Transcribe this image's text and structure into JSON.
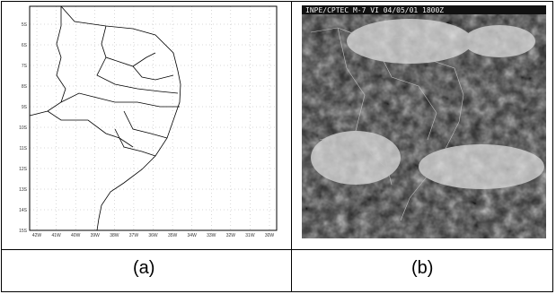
{
  "panel_a": {
    "caption": "(a)",
    "y_ticks": [
      "5S",
      "6S",
      "7S",
      "8S",
      "9S",
      "10S",
      "11S",
      "12S",
      "13S",
      "14S",
      "15S"
    ],
    "x_ticks": [
      "42W",
      "41W",
      "40W",
      "39W",
      "38W",
      "37W",
      "36W",
      "35W",
      "34W",
      "33W",
      "32W",
      "31W",
      "30W"
    ],
    "colors": {
      "frame": "#000000",
      "grid": "#b0b0b0",
      "coast": "#000000"
    }
  },
  "panel_b": {
    "caption": "(b)",
    "banner": "INPE/CPTEC M-7 VI 04/05/01 1800Z",
    "colors": {
      "cloud": "#e8e8e8",
      "land": "#3a3a3a",
      "ocean": "#1f1f1f"
    }
  }
}
